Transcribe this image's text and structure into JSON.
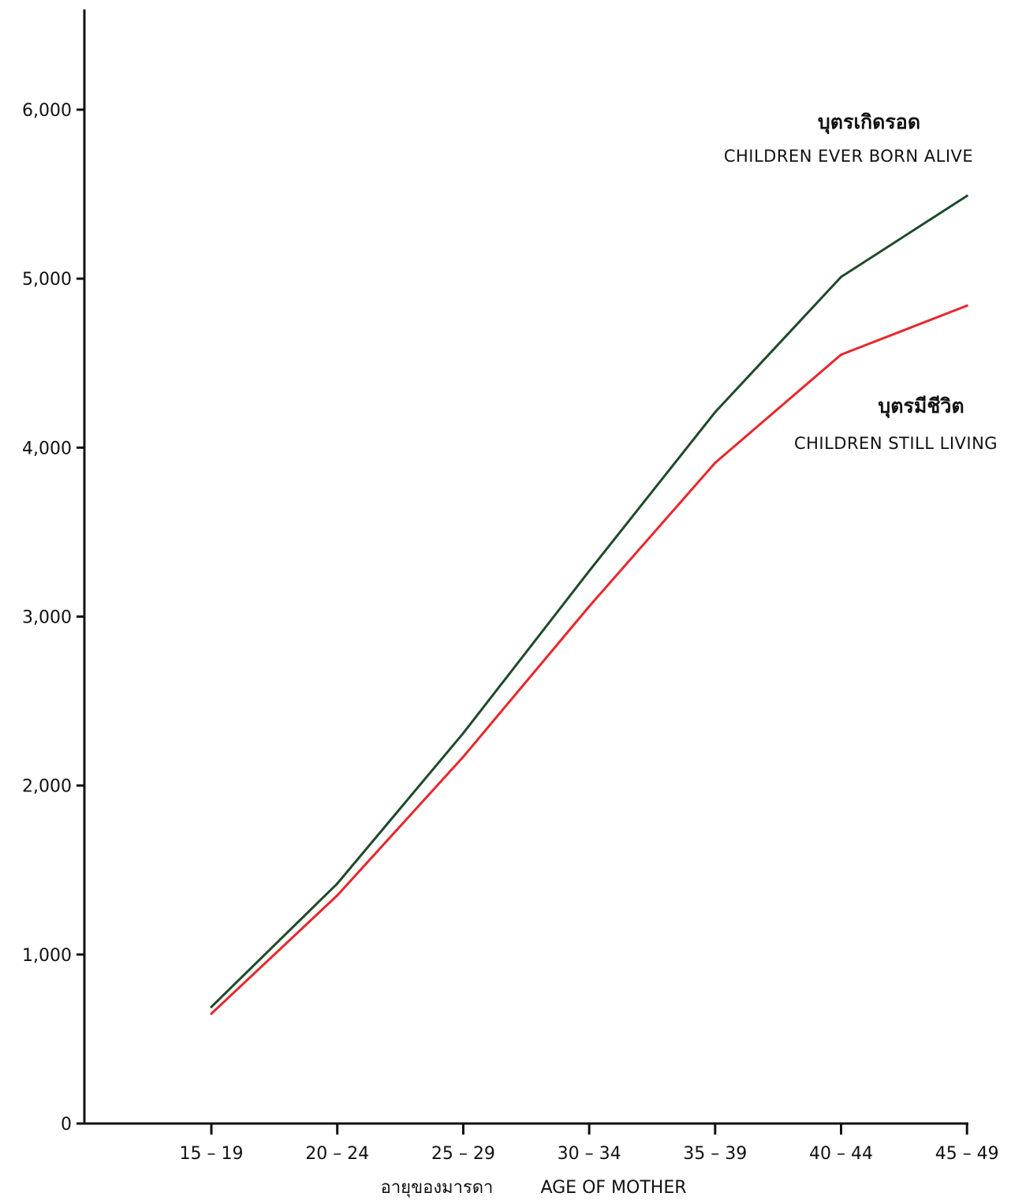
{
  "chart_data": {
    "type": "line",
    "categories": [
      "15 – 19",
      "20 – 24",
      "25 – 29",
      "30 – 34",
      "35 – 39",
      "40 – 44",
      "45 – 49"
    ],
    "series": [
      {
        "name_th": "บุตรเกิดรอด",
        "name": "CHILDREN EVER BORN ALIVE",
        "color": "#1f4a2a",
        "values": [
          690,
          1420,
          2310,
          3270,
          4210,
          5010,
          5490
        ]
      },
      {
        "name_th": "บุตรมีชีวิต",
        "name": "CHILDREN STILL LIVING",
        "color": "#e8262b",
        "values": [
          650,
          1350,
          2170,
          3060,
          3910,
          4550,
          4840
        ]
      }
    ],
    "yticks": [
      0,
      1000,
      2000,
      3000,
      4000,
      5000,
      6000
    ],
    "ytick_labels": [
      "0",
      "1,000",
      "2,000",
      "3,000",
      "4,000",
      "5,000",
      "6,000"
    ],
    "ylim": [
      0,
      6600
    ],
    "xlabel_th": "อายุของมารดา",
    "xlabel": "AGE OF MOTHER",
    "grid": false
  }
}
